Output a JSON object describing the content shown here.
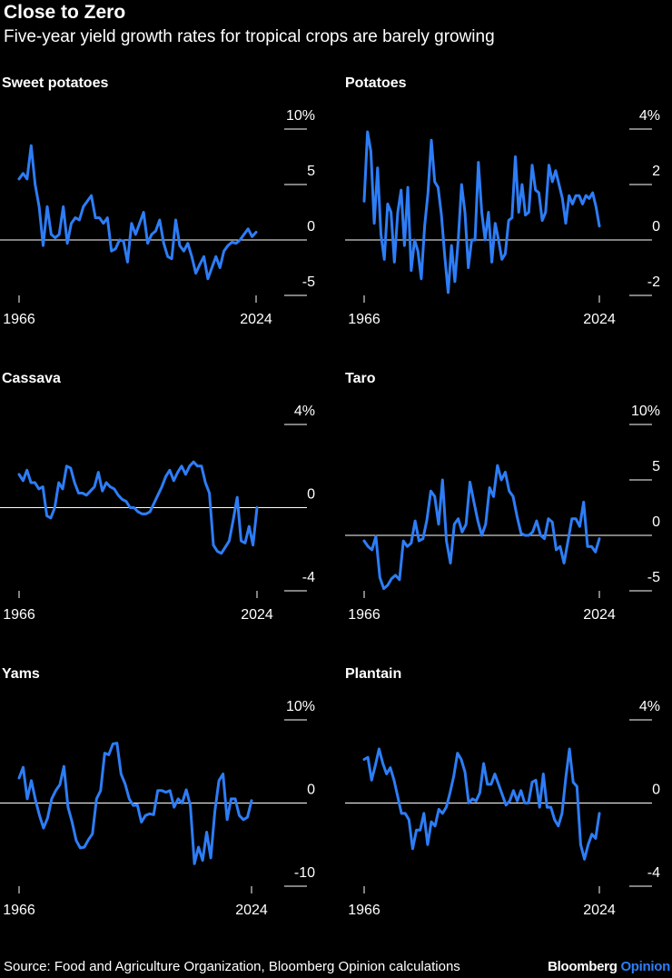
{
  "header": {
    "title": "Close to Zero",
    "subtitle": "Five-year yield growth rates for tropical crops are barely growing"
  },
  "footer": {
    "source": "Source: Food and Agriculture Organization, Bloomberg Opinion calculations",
    "brand_main": "Bloomberg",
    "brand_accent": "Opinion"
  },
  "colors": {
    "line": "#2d7df6",
    "zero_line": "#ffffff",
    "tick": "#ffffff",
    "background": "#000000"
  },
  "chart_data": [
    {
      "type": "line",
      "title": "Sweet potatoes",
      "x_start": 1966,
      "x_end": 2024,
      "x_tick_labels": [
        "1966",
        "2024"
      ],
      "ylim": [
        -5,
        10
      ],
      "y_ticks": [
        10,
        5,
        0,
        -5
      ],
      "y_tick_labels": [
        "10%",
        "5",
        "0",
        "-5"
      ],
      "values": [
        5.5,
        6.0,
        5.5,
        8.5,
        5.0,
        3.0,
        -0.5,
        3.0,
        0.5,
        0.2,
        0.5,
        3.0,
        -0.3,
        1.5,
        2.0,
        1.8,
        3.0,
        3.5,
        4.0,
        2.0,
        2.0,
        1.5,
        2.0,
        -1.0,
        -0.8,
        0.0,
        -0.1,
        -2.0,
        1.5,
        0.5,
        1.5,
        2.5,
        -0.3,
        0.5,
        0.8,
        1.8,
        -0.3,
        -1.5,
        -1.7,
        1.8,
        -0.5,
        -1.0,
        -0.3,
        -1.5,
        -3.0,
        -2.2,
        -1.5,
        -3.5,
        -2.5,
        -1.5,
        -2.5,
        -1.0,
        -0.5,
        -0.2,
        -0.3,
        0.0,
        0.5,
        1.0,
        0.3,
        0.7
      ]
    },
    {
      "type": "line",
      "title": "Potatoes",
      "x_start": 1966,
      "x_end": 2024,
      "x_tick_labels": [
        "1966",
        "2024"
      ],
      "ylim": [
        -2,
        4
      ],
      "y_ticks": [
        4,
        2,
        0,
        -2
      ],
      "y_tick_labels": [
        "4%",
        "2",
        "0",
        "-2"
      ],
      "values": [
        1.4,
        3.9,
        3.2,
        0.6,
        2.6,
        0.2,
        -0.7,
        1.3,
        1.0,
        -0.8,
        1.0,
        1.8,
        -0.2,
        1.9,
        -1.1,
        0.0,
        -0.4,
        -1.4,
        0.5,
        1.7,
        3.6,
        2.1,
        1.9,
        0.9,
        -0.6,
        -1.9,
        -0.2,
        -1.5,
        0.0,
        2.0,
        1.0,
        -1.0,
        0.0,
        0.0,
        2.8,
        1.0,
        0.0,
        1.0,
        -0.8,
        0.6,
        0.0,
        -0.7,
        -0.5,
        0.7,
        0.8,
        3.0,
        1.0,
        2.0,
        0.9,
        1.0,
        2.7,
        1.8,
        1.7,
        0.7,
        1.0,
        2.7,
        2.1,
        2.5,
        2.0,
        1.5,
        0.6,
        1.6,
        1.3,
        1.6,
        1.6,
        1.3,
        1.6,
        1.5,
        1.7,
        1.2,
        0.5
      ]
    },
    {
      "type": "line",
      "title": "Cassava",
      "x_start": 1966,
      "x_end": 2024,
      "x_tick_labels": [
        "1966",
        "2024"
      ],
      "ylim": [
        -4,
        4
      ],
      "y_ticks": [
        4,
        0,
        -4
      ],
      "y_tick_labels": [
        "4%",
        "0",
        "-4"
      ],
      "values": [
        1.6,
        1.3,
        1.8,
        1.2,
        1.2,
        0.9,
        1.0,
        -0.4,
        -0.5,
        0.0,
        1.2,
        0.9,
        2.0,
        1.9,
        1.2,
        0.7,
        0.7,
        0.6,
        0.8,
        1.0,
        1.7,
        0.8,
        1.2,
        1.0,
        0.9,
        0.6,
        0.4,
        0.3,
        0.0,
        0.0,
        -0.2,
        -0.3,
        -0.3,
        -0.2,
        0.2,
        0.6,
        1.0,
        1.5,
        1.8,
        1.3,
        1.7,
        2.0,
        1.6,
        2.0,
        2.2,
        2.0,
        2.0,
        1.2,
        0.7,
        -1.8,
        -2.1,
        -2.2,
        -1.9,
        -1.6,
        -0.6,
        0.5,
        -1.6,
        -1.7,
        -0.9,
        -1.8,
        0.0
      ]
    },
    {
      "type": "line",
      "title": "Taro",
      "x_start": 1966,
      "x_end": 2024,
      "x_tick_labels": [
        "1966",
        "2024"
      ],
      "ylim": [
        -5,
        10
      ],
      "y_ticks": [
        10,
        5,
        0,
        -5
      ],
      "y_tick_labels": [
        "10%",
        "5",
        "0",
        "-5"
      ],
      "values": [
        -0.5,
        -1.0,
        -1.3,
        -0.1,
        -3.8,
        -4.8,
        -4.5,
        -3.9,
        -3.6,
        -4.0,
        -0.5,
        -1.0,
        -0.7,
        1.3,
        -0.5,
        -0.3,
        1.4,
        4.0,
        3.5,
        1.0,
        5.0,
        -0.5,
        -2.5,
        1.0,
        1.5,
        0.3,
        1.0,
        4.8,
        3.0,
        1.3,
        0.0,
        1.0,
        4.3,
        3.5,
        6.3,
        5.0,
        5.7,
        4.0,
        3.5,
        1.7,
        0.2,
        0.0,
        0.0,
        0.3,
        1.3,
        0.0,
        -0.3,
        1.5,
        1.2,
        -1.3,
        -1.0,
        -2.5,
        -0.5,
        1.5,
        1.5,
        0.8,
        3.0,
        -1.0,
        -1.0,
        -1.5,
        -0.3
      ]
    },
    {
      "type": "line",
      "title": "Yams",
      "x_start": 1966,
      "x_end": 2024,
      "x_tick_labels": [
        "1966",
        "2024"
      ],
      "ylim": [
        -10,
        10
      ],
      "y_ticks": [
        10,
        0,
        -10
      ],
      "y_tick_labels": [
        "10%",
        "0",
        "-10"
      ],
      "values": [
        3.0,
        4.3,
        0.5,
        2.7,
        0.4,
        -1.5,
        -3.0,
        -1.8,
        0.5,
        1.5,
        2.2,
        4.4,
        -0.5,
        -2.3,
        -4.5,
        -5.4,
        -5.3,
        -4.4,
        -3.7,
        0.5,
        1.5,
        6.0,
        5.8,
        7.1,
        7.2,
        3.5,
        2.3,
        0.5,
        -0.3,
        -0.2,
        -2.3,
        -1.5,
        -1.3,
        -1.4,
        1.5,
        1.5,
        1.3,
        1.5,
        -0.5,
        0.5,
        0.0,
        1.6,
        -0.3,
        -7.3,
        -5.3,
        -6.9,
        -3.5,
        -6.6,
        -1.0,
        2.7,
        3.5,
        -2.0,
        0.5,
        0.5,
        -1.5,
        -2.0,
        -1.7,
        0.3
      ]
    },
    {
      "type": "line",
      "title": "Plantain",
      "x_start": 1966,
      "x_end": 2024,
      "x_tick_labels": [
        "1966",
        "2024"
      ],
      "ylim": [
        -4,
        4
      ],
      "y_ticks": [
        4,
        0,
        -4
      ],
      "y_tick_labels": [
        "4%",
        "0",
        "-4"
      ],
      "values": [
        2.1,
        2.2,
        1.1,
        1.8,
        2.6,
        1.9,
        1.4,
        1.7,
        1.1,
        0.3,
        -0.5,
        -0.5,
        -0.8,
        -2.2,
        -1.3,
        -1.3,
        -0.5,
        -2.0,
        -0.9,
        -1.1,
        -0.3,
        -0.5,
        -0.2,
        0.5,
        1.3,
        2.4,
        2.1,
        1.5,
        0.0,
        0.2,
        0.1,
        0.5,
        1.9,
        0.9,
        0.9,
        1.4,
        0.9,
        0.4,
        -0.1,
        0.1,
        0.6,
        0.1,
        0.6,
        0.0,
        0.0,
        1.0,
        1.1,
        -0.2,
        1.4,
        -0.2,
        -0.2,
        -0.8,
        -1.1,
        -0.5,
        1.2,
        2.6,
        1.0,
        0.8,
        -2.0,
        -2.7,
        -2.0,
        -1.5,
        -1.7,
        -0.5
      ]
    }
  ]
}
